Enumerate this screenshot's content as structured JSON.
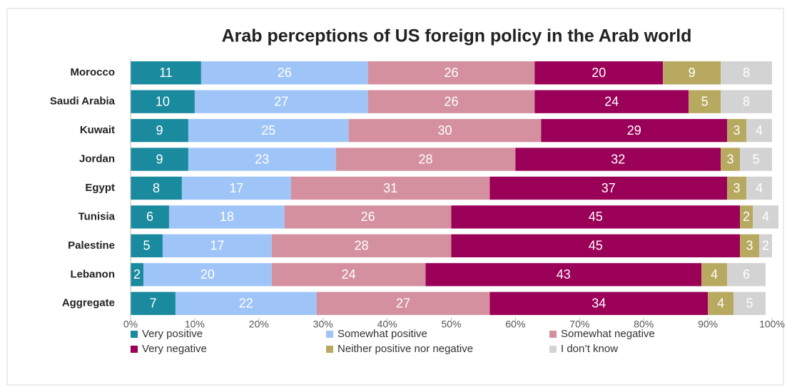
{
  "chart_data": {
    "type": "bar",
    "orientation": "horizontal",
    "stacked": true,
    "title": "Arab perceptions of US foreign policy in the Arab world",
    "categories": [
      "Morocco",
      "Saudi Arabia",
      "Kuwait",
      "Jordan",
      "Egypt",
      "Tunisia",
      "Palestine",
      "Lebanon",
      "Aggregate"
    ],
    "series": [
      {
        "name": "Very positive",
        "color": "#1a8a9e",
        "values": [
          11,
          10,
          9,
          9,
          8,
          6,
          5,
          2,
          7
        ]
      },
      {
        "name": "Somewhat positive",
        "color": "#9fc5f8",
        "values": [
          26,
          27,
          25,
          23,
          17,
          18,
          17,
          20,
          22
        ]
      },
      {
        "name": "Somewhat negative",
        "color": "#d4909f",
        "values": [
          26,
          26,
          30,
          28,
          31,
          26,
          28,
          24,
          27
        ]
      },
      {
        "name": "Very negative",
        "color": "#9b0058",
        "values": [
          20,
          24,
          29,
          32,
          37,
          45,
          45,
          43,
          34
        ]
      },
      {
        "name": "Neither positive nor negative",
        "color": "#b8a960",
        "values": [
          9,
          5,
          3,
          3,
          3,
          2,
          3,
          4,
          4
        ]
      },
      {
        "name": "I don’t know",
        "color": "#d3d3d3",
        "values": [
          8,
          8,
          4,
          5,
          4,
          4,
          2,
          6,
          5
        ]
      }
    ],
    "xlim": [
      0,
      100
    ],
    "xticks": [
      {
        "value": 0,
        "label": "0%"
      },
      {
        "value": 10,
        "label": "10%"
      },
      {
        "value": 20,
        "label": "20%"
      },
      {
        "value": 30,
        "label": "30%"
      },
      {
        "value": 40,
        "label": "40%"
      },
      {
        "value": 50,
        "label": "50%"
      },
      {
        "value": 60,
        "label": "60%"
      },
      {
        "value": 70,
        "label": "70%"
      },
      {
        "value": 80,
        "label": "80%"
      },
      {
        "value": 90,
        "label": "90%"
      },
      {
        "value": 100,
        "label": "100%"
      }
    ],
    "legend": "bottom"
  }
}
